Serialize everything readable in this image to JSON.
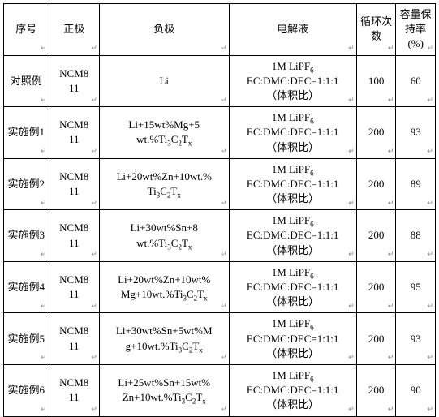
{
  "table": {
    "columns": [
      {
        "key": "seq",
        "label": "序号",
        "class": "col-seq"
      },
      {
        "key": "pos",
        "label": "正极",
        "class": "col-pos"
      },
      {
        "key": "neg",
        "label": "负极",
        "class": "col-neg"
      },
      {
        "key": "ele",
        "label": "电解液",
        "class": "col-ele"
      },
      {
        "key": "cyc",
        "label": "循环次数",
        "class": "col-cyc"
      },
      {
        "key": "cap",
        "label": "容量保持率(%)",
        "class": "col-cap"
      }
    ],
    "rows": [
      {
        "seq": "对照例",
        "pos_html": "NCM8<br>11",
        "neg_html": "Li",
        "ele_html": "1M LiPF<sub>6</sub><br>EC:DMC:DEC=1:1:1<br>（体积比）",
        "cyc": "100",
        "cap": "60"
      },
      {
        "seq": "实施例1",
        "pos_html": "NCM8<br>11",
        "neg_html": "Li+15wt%Mg+5<br>wt.%Ti<sub>3</sub>C<sub>2</sub>T<sub>x</sub>",
        "ele_html": "1M LiPF<sub>6</sub><br>EC:DMC:DEC=1:1:1<br>（体积比）",
        "cyc": "200",
        "cap": "93"
      },
      {
        "seq": "实施例2",
        "pos_html": "NCM8<br>11",
        "neg_html": "Li+20wt%Zn+10wt.%<br>Ti<sub>3</sub>C<sub>2</sub>T<sub>x</sub>",
        "ele_html": "1M LiPF<sub>6</sub><br>EC:DMC:DEC=1:1:1<br>（体积比）",
        "cyc": "200",
        "cap": "89"
      },
      {
        "seq": "实施例3",
        "pos_html": "NCM8<br>11",
        "neg_html": "Li+30wt%Sn+8<br>wt.%Ti<sub>3</sub>C<sub>2</sub>T<sub>x</sub>",
        "ele_html": "1M LiPF<sub>6</sub><br>EC:DMC:DEC=1:1:1<br>（体积比）",
        "cyc": "200",
        "cap": "88"
      },
      {
        "seq": "实施例4",
        "pos_html": "NCM8<br>11",
        "neg_html": "Li+20wt%Zn+10wt%<br>Mg+10wt.%Ti<sub>3</sub>C<sub>2</sub>T<sub>x</sub>",
        "ele_html": "1M LiPF<sub>6</sub><br>EC:DMC:DEC=1:1:1<br>（体积比）",
        "cyc": "200",
        "cap": "95"
      },
      {
        "seq": "实施例5",
        "pos_html": "NCM8<br>11",
        "neg_html": "Li+30wt%Sn+5wt%M<br>g+10wt.%Ti<sub>3</sub>C<sub>2</sub>T<sub>x</sub>",
        "ele_html": "1M LiPF<sub>6</sub><br>EC:DMC:DEC=1:1:1<br>（体积比）",
        "cyc": "200",
        "cap": "93"
      },
      {
        "seq": "实施例6",
        "pos_html": "NCM8<br>11",
        "neg_html": "Li+25wt%Sn+15wt%<br>Zn+10wt.%Ti<sub>3</sub>C<sub>2</sub>T<sub>x</sub>",
        "ele_html": "1M LiPF<sub>6</sub><br>EC:DMC:DEC=1:1:1<br>（体积比）",
        "cyc": "200",
        "cap": "90"
      }
    ],
    "border_color": "#000000",
    "background_color": "#ffffff",
    "font_size_pt": 10,
    "return_mark": "↵"
  }
}
